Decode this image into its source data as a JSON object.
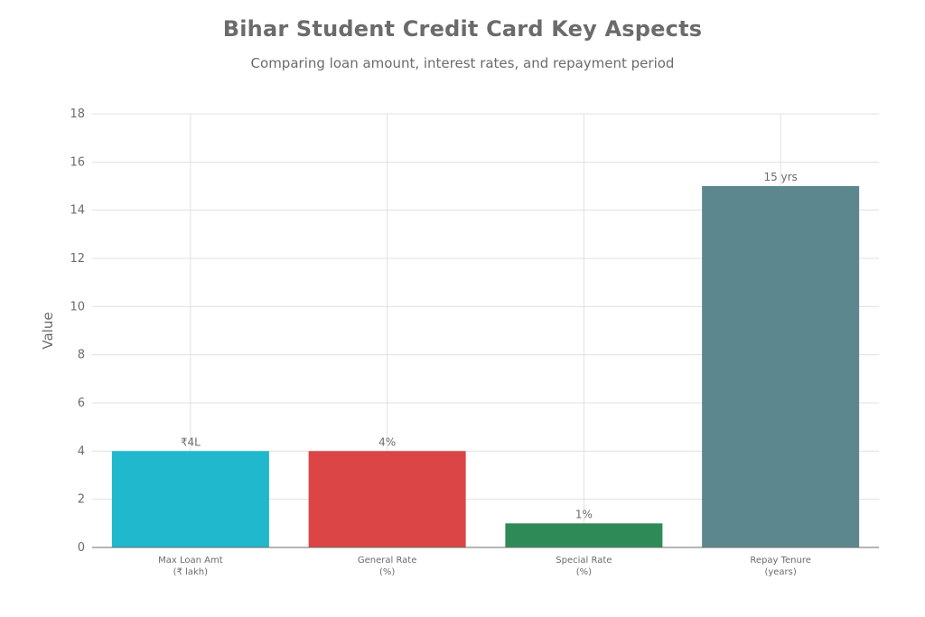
{
  "chart_data": {
    "type": "bar",
    "title": "Bihar Student Credit Card Key Aspects",
    "subtitle": "Comparing loan amount, interest rates, and repayment period",
    "xlabel": "",
    "ylabel": "Value",
    "ylim": [
      0,
      18
    ],
    "yticks": [
      0,
      2,
      4,
      6,
      8,
      10,
      12,
      14,
      16,
      18
    ],
    "grid": true,
    "categories": [
      [
        "Max Loan Amt",
        "(₹ lakh)"
      ],
      [
        "General Rate",
        "(%)"
      ],
      [
        "Special Rate",
        "(%)"
      ],
      [
        "Repay Tenure",
        "(years)"
      ]
    ],
    "values": [
      4,
      4,
      1,
      15
    ],
    "data_labels": [
      "₹4L",
      "4%",
      "1%",
      "15 yrs"
    ],
    "colors": [
      "#1FB8CD",
      "#DB4545",
      "#2E8B57",
      "#5D878F"
    ]
  }
}
